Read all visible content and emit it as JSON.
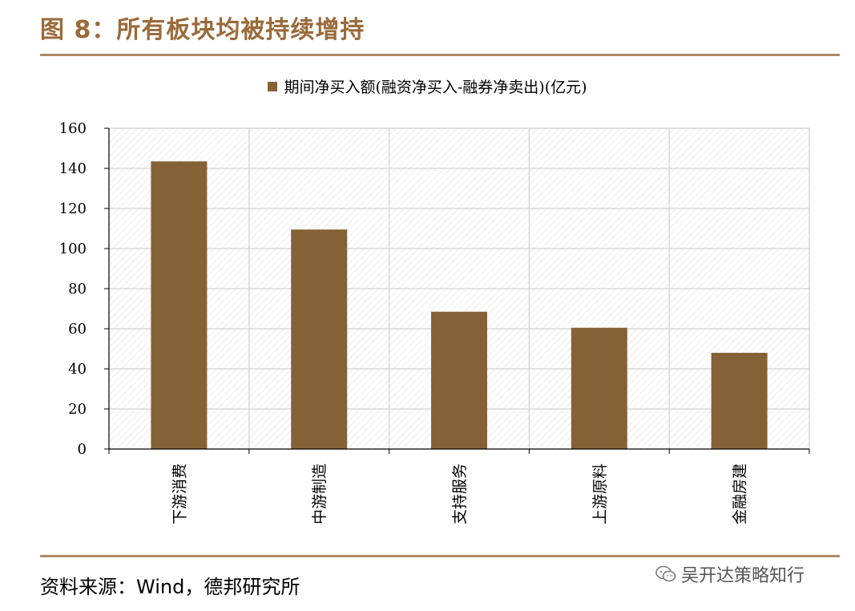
{
  "figure": {
    "title": "图 8：所有板块均被持续增持",
    "source": "资料来源：Wind，德邦研究所",
    "watermark": "吴开达策略知行"
  },
  "colors": {
    "bar": "#856236",
    "title": "#9a6a3a",
    "rule": "#b08a66",
    "grid": "#d9d9d9"
  },
  "chart_data": {
    "type": "bar",
    "categories": [
      "下游消费",
      "中游制造",
      "支持服务",
      "上游原料",
      "金融房建"
    ],
    "series": [
      {
        "name": "期间净买入额(融资净买入-融券净卖出)(亿元)",
        "values": [
          143.5,
          109.5,
          68.5,
          60.5,
          48
        ]
      }
    ],
    "ylim": [
      0,
      160
    ],
    "yticks": [
      0,
      20,
      40,
      60,
      80,
      100,
      120,
      140,
      160
    ],
    "grid": true,
    "legend": "top-center"
  }
}
